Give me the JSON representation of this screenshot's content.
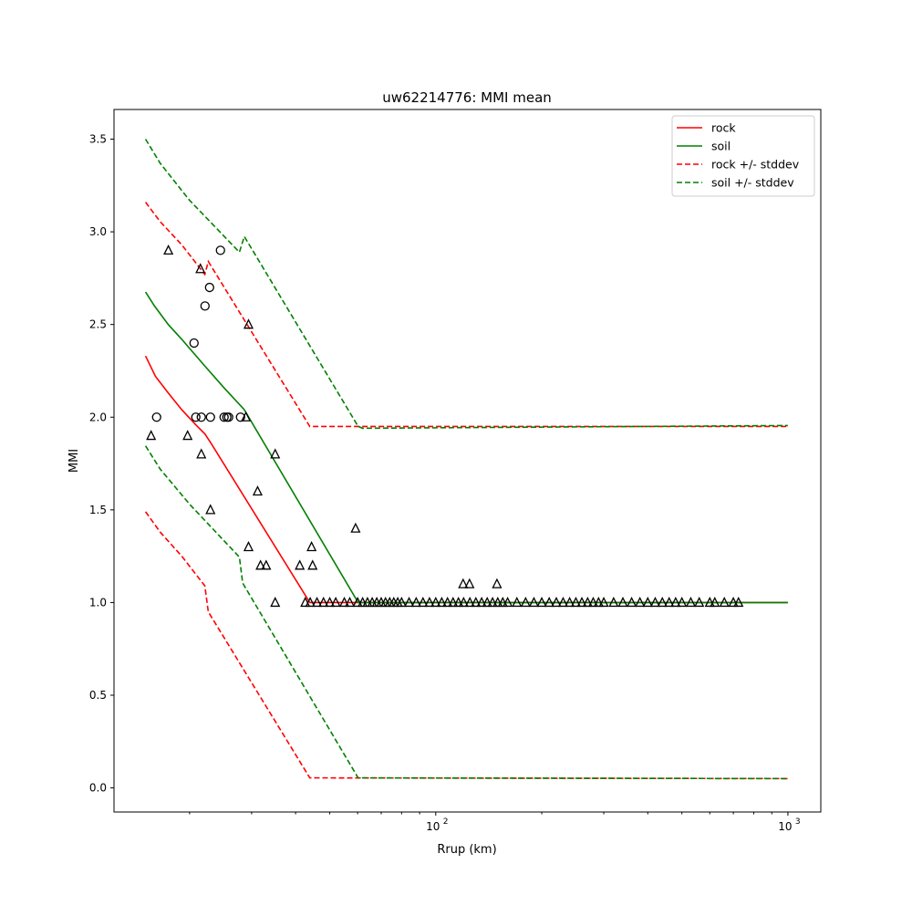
{
  "chart_data": {
    "type": "line",
    "title": "uw62214776: MMI mean",
    "xlabel": "Rrup (km)",
    "ylabel": "MMI",
    "xscale": "log",
    "xlim": [
      12.2,
      1240
    ],
    "ylim": [
      -0.13,
      3.66
    ],
    "yticks": [
      0.0,
      0.5,
      1.0,
      1.5,
      2.0,
      2.5,
      3.0,
      3.5
    ],
    "ytick_labels": [
      "0.0",
      "0.5",
      "1.0",
      "1.5",
      "2.0",
      "2.5",
      "3.0",
      "3.5"
    ],
    "xticks": [
      100,
      1000
    ],
    "xtick_labels": [
      {
        "base": "10",
        "exp": "2"
      },
      {
        "base": "10",
        "exp": "3"
      }
    ],
    "grid": false,
    "legend_position": "top-right",
    "series": [
      {
        "name": "rock",
        "color": "#ff0000",
        "style": "solid",
        "points": [
          [
            15,
            2.33
          ],
          [
            16,
            2.22
          ],
          [
            17.4,
            2.13
          ],
          [
            19,
            2.04
          ],
          [
            20.8,
            1.96
          ],
          [
            22.1,
            1.91
          ],
          [
            23,
            1.86
          ],
          [
            43.9,
            1.0
          ],
          [
            1000,
            1.0
          ]
        ]
      },
      {
        "name": "soil",
        "color": "#008000",
        "style": "solid",
        "points": [
          [
            15,
            2.675
          ],
          [
            15.9,
            2.6
          ],
          [
            17.4,
            2.5
          ],
          [
            19,
            2.42
          ],
          [
            22,
            2.28
          ],
          [
            25,
            2.16
          ],
          [
            28.6,
            2.04
          ],
          [
            60.2,
            1.0
          ],
          [
            1000,
            1.0
          ]
        ]
      },
      {
        "name": "rock +/- stddev",
        "color": "#ff0000",
        "style": "dashed",
        "points": [
          [
            15,
            3.16
          ],
          [
            16.5,
            3.055
          ],
          [
            19,
            2.93
          ],
          [
            22.1,
            2.77
          ],
          [
            22.6,
            2.84
          ],
          [
            43.9,
            1.95
          ],
          [
            1000,
            1.95
          ]
        ],
        "points_lower": [
          [
            15,
            1.49
          ],
          [
            16.5,
            1.38
          ],
          [
            19,
            1.25
          ],
          [
            22.1,
            1.09
          ],
          [
            22.6,
            0.95
          ],
          [
            43.9,
            0.054
          ],
          [
            1000,
            0.05
          ]
        ]
      },
      {
        "name": "soil +/- stddev",
        "color": "#008000",
        "style": "dashed",
        "points": [
          [
            15,
            3.5
          ],
          [
            16.5,
            3.37
          ],
          [
            20,
            3.17
          ],
          [
            27.7,
            2.89
          ],
          [
            28.6,
            2.975
          ],
          [
            60.2,
            1.95
          ],
          [
            62,
            1.94
          ],
          [
            1000,
            1.955
          ]
        ],
        "points_lower": [
          [
            15,
            1.845
          ],
          [
            16.5,
            1.72
          ],
          [
            20,
            1.53
          ],
          [
            27.7,
            1.245
          ],
          [
            28.3,
            1.105
          ],
          [
            60.2,
            0.054
          ],
          [
            1000,
            0.05
          ]
        ]
      }
    ],
    "scatter": {
      "circles": [
        [
          16.12,
          2.0
        ],
        [
          20.83,
          2.0
        ],
        [
          21.59,
          2.0
        ],
        [
          22.92,
          2.0
        ],
        [
          25.06,
          2.0
        ],
        [
          25.51,
          2.0
        ],
        [
          25.82,
          2.0
        ],
        [
          27.9,
          2.0
        ],
        [
          24.47,
          2.9
        ],
        [
          22.79,
          2.7
        ],
        [
          22.12,
          2.6
        ],
        [
          20.59,
          2.4
        ]
      ],
      "triangles": [
        [
          15.55,
          1.9
        ],
        [
          17.41,
          2.9
        ],
        [
          21.46,
          2.8
        ],
        [
          19.74,
          1.9
        ],
        [
          21.59,
          1.8
        ],
        [
          22.92,
          1.5
        ],
        [
          29.4,
          2.5
        ],
        [
          28.9,
          2.0
        ],
        [
          29.4,
          1.3
        ],
        [
          31.2,
          1.6
        ],
        [
          31.8,
          1.2
        ],
        [
          33.0,
          1.2
        ],
        [
          35.0,
          1.8
        ],
        [
          35.0,
          1.0
        ],
        [
          41.1,
          1.2
        ],
        [
          44.4,
          1.3
        ],
        [
          44.7,
          1.2
        ],
        [
          59.2,
          1.4
        ],
        [
          119.6,
          1.1
        ],
        [
          124.7,
          1.1
        ],
        [
          149.2,
          1.1
        ],
        [
          42.6,
          1.0
        ],
        [
          44,
          1.0
        ],
        [
          46,
          1.0
        ],
        [
          48,
          1.0
        ],
        [
          50,
          1.0
        ],
        [
          52,
          1.0
        ],
        [
          55,
          1.0
        ],
        [
          57,
          1.0
        ],
        [
          60,
          1.0
        ],
        [
          62,
          1.0
        ],
        [
          64,
          1.0
        ],
        [
          66,
          1.0
        ],
        [
          68,
          1.0
        ],
        [
          70,
          1.0
        ],
        [
          72,
          1.0
        ],
        [
          74,
          1.0
        ],
        [
          76,
          1.0
        ],
        [
          78,
          1.0
        ],
        [
          80,
          1.0
        ],
        [
          84,
          1.0
        ],
        [
          88,
          1.0
        ],
        [
          92,
          1.0
        ],
        [
          96,
          1.0
        ],
        [
          100,
          1.0
        ],
        [
          104,
          1.0
        ],
        [
          108,
          1.0
        ],
        [
          112,
          1.0
        ],
        [
          116,
          1.0
        ],
        [
          120,
          1.0
        ],
        [
          125,
          1.0
        ],
        [
          130,
          1.0
        ],
        [
          135,
          1.0
        ],
        [
          140,
          1.0
        ],
        [
          145,
          1.0
        ],
        [
          150,
          1.0
        ],
        [
          155,
          1.0
        ],
        [
          160,
          1.0
        ],
        [
          170,
          1.0
        ],
        [
          180,
          1.0
        ],
        [
          190,
          1.0
        ],
        [
          200,
          1.0
        ],
        [
          210,
          1.0
        ],
        [
          220,
          1.0
        ],
        [
          230,
          1.0
        ],
        [
          240,
          1.0
        ],
        [
          250,
          1.0
        ],
        [
          260,
          1.0
        ],
        [
          270,
          1.0
        ],
        [
          280,
          1.0
        ],
        [
          290,
          1.0
        ],
        [
          300,
          1.0
        ],
        [
          320,
          1.0
        ],
        [
          340,
          1.0
        ],
        [
          360,
          1.0
        ],
        [
          380,
          1.0
        ],
        [
          400,
          1.0
        ],
        [
          420,
          1.0
        ],
        [
          440,
          1.0
        ],
        [
          460,
          1.0
        ],
        [
          480,
          1.0
        ],
        [
          500,
          1.0
        ],
        [
          530,
          1.0
        ],
        [
          560,
          1.0
        ],
        [
          600,
          1.0
        ],
        [
          620,
          1.0
        ],
        [
          660,
          1.0
        ],
        [
          700,
          1.0
        ],
        [
          724,
          1.0
        ]
      ]
    }
  }
}
